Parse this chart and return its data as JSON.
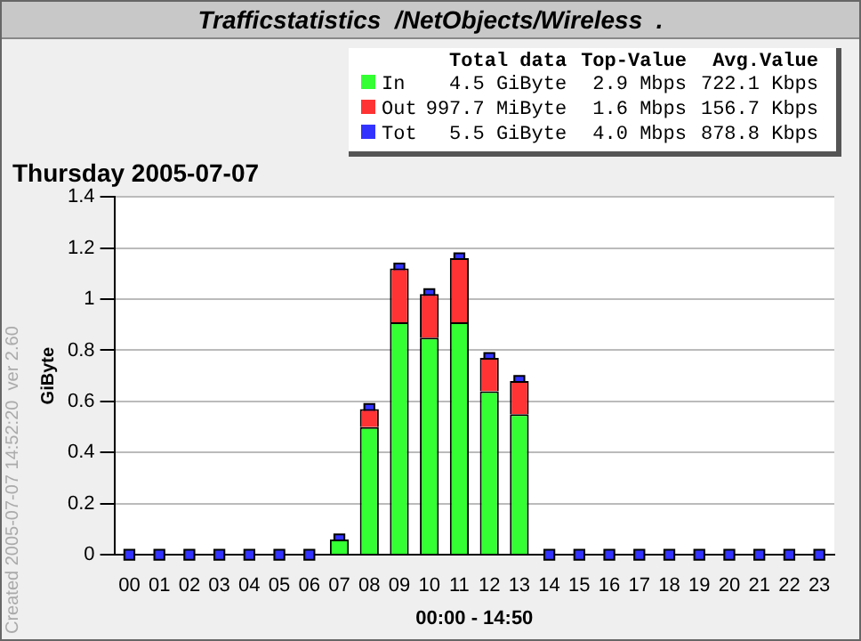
{
  "chart_data": {
    "type": "bar",
    "title": "Trafficstatistics  /NetObjects/Wireless  .",
    "subtitle": "Thursday 2005-07-07",
    "xlabel": "00:00 - 14:50",
    "ylabel": "GiByte",
    "categories": [
      "00",
      "01",
      "02",
      "03",
      "04",
      "05",
      "06",
      "07",
      "08",
      "09",
      "10",
      "11",
      "12",
      "13",
      "14",
      "15",
      "16",
      "17",
      "18",
      "19",
      "20",
      "21",
      "22",
      "23"
    ],
    "stacked": true,
    "series": [
      {
        "name": "In",
        "color": "#33ff33",
        "values": [
          null,
          null,
          null,
          null,
          null,
          null,
          null,
          0.06,
          0.5,
          0.91,
          0.85,
          0.91,
          0.64,
          0.55,
          null,
          null,
          null,
          null,
          null,
          null,
          null,
          null,
          null,
          null
        ]
      },
      {
        "name": "Out",
        "color": "#ff3333",
        "values": [
          null,
          null,
          null,
          null,
          null,
          null,
          null,
          null,
          0.07,
          0.21,
          0.17,
          0.25,
          0.13,
          0.13,
          null,
          null,
          null,
          null,
          null,
          null,
          null,
          null,
          null,
          null
        ]
      },
      {
        "name": "Tot",
        "type": "scatter",
        "color": "#3333ff",
        "values": [
          0,
          0,
          0,
          0,
          0,
          0,
          0,
          0.06,
          0.57,
          1.12,
          1.02,
          1.16,
          0.77,
          0.68,
          0,
          0,
          0,
          0,
          0,
          0,
          0,
          0,
          0,
          0
        ]
      }
    ],
    "marker": "square",
    "ylim": [
      0,
      1.4
    ],
    "yticks": [
      0,
      0.2,
      0.4,
      0.6,
      0.8,
      1,
      1.2,
      1.4
    ],
    "grid": "y",
    "legend": "top",
    "annotations": [
      "Created 2005-07-07 14:52:20  ver 2.60",
      "Total data",
      "Top-Value",
      "Avg.Value",
      "4.5 GiByte",
      "2.9 Mbps",
      "722.1 Kbps",
      "997.7 MiByte",
      "1.6 Mbps",
      "156.7 Kbps",
      "5.5 GiByte",
      "4.0 Mbps",
      "878.8 Kbps"
    ]
  }
}
